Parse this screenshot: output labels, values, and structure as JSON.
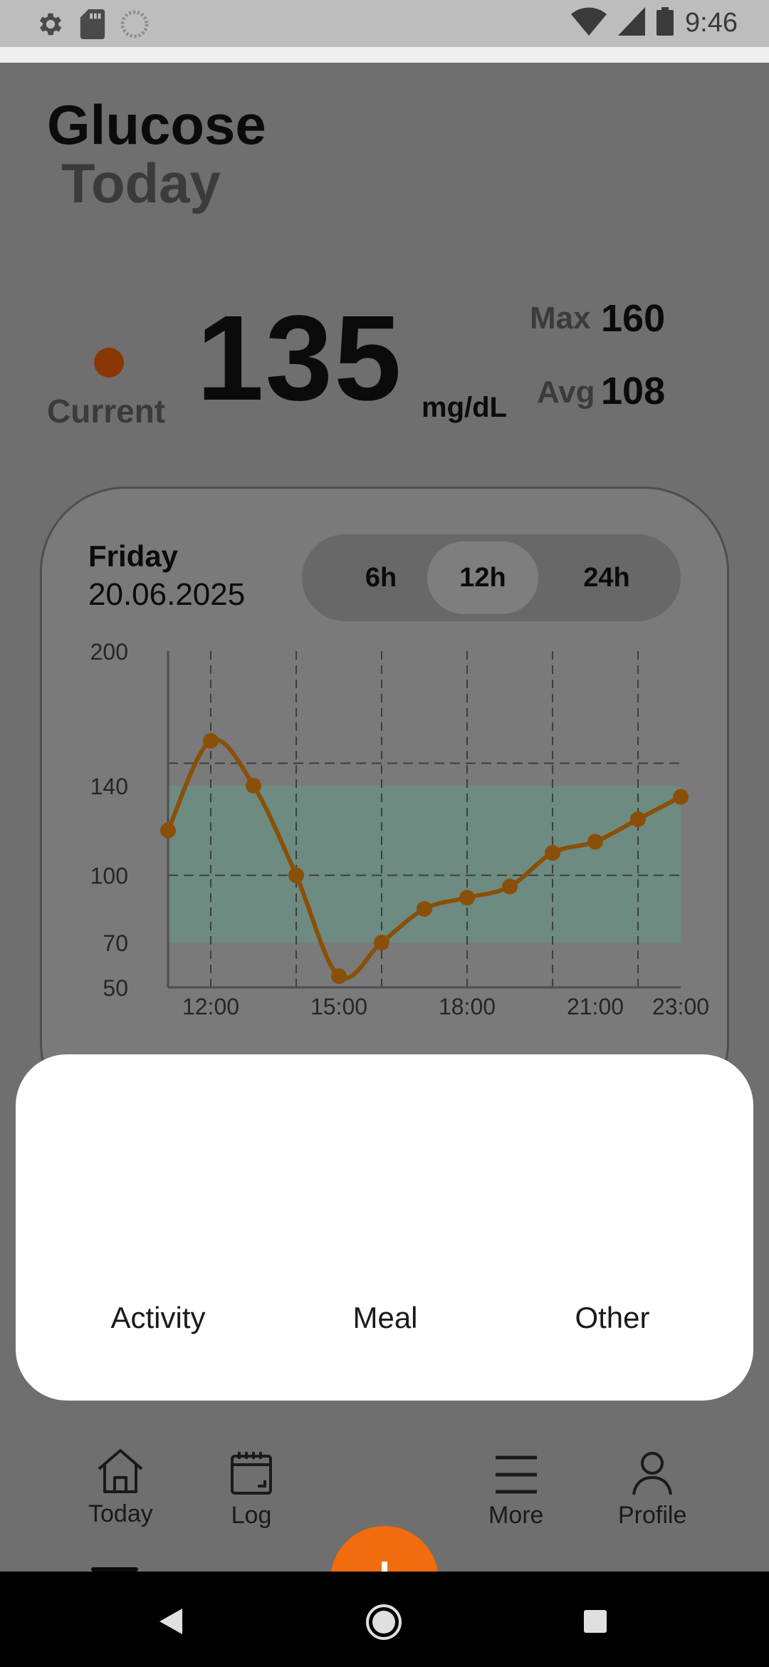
{
  "status_bar": {
    "time": "9:46",
    "left_icons": [
      "gear-icon",
      "sd-card-icon",
      "sync-icon"
    ],
    "right_icons": [
      "wifi-icon",
      "signal-icon",
      "battery-icon"
    ]
  },
  "header": {
    "title_line1": "Glucose",
    "title_line2": "Today"
  },
  "current": {
    "label": "Current",
    "value": "135",
    "unit": "mg/dL",
    "indicator_color": "#8a3706"
  },
  "stats": {
    "max_label": "Max",
    "max_value": "160",
    "avg_label": "Avg",
    "avg_value": "108"
  },
  "card": {
    "day": "Friday",
    "date": "20.06.2025",
    "ranges": [
      "6h",
      "12h",
      "24h"
    ],
    "selected_range": "12h"
  },
  "chart_data": {
    "type": "line",
    "x_tick_labels": [
      "12:00",
      "15:00",
      "18:00",
      "21:00",
      "23:00"
    ],
    "y_tick_labels": [
      "200",
      "140",
      "100",
      "70",
      "50"
    ],
    "ylim": [
      50,
      200
    ],
    "xlim": [
      "11:00",
      "23:00"
    ],
    "target_range": [
      70,
      140
    ],
    "reference_lines": [
      150,
      100
    ],
    "x": [
      "11:00",
      "12:00",
      "13:00",
      "14:00",
      "15:00",
      "16:00",
      "17:00",
      "18:00",
      "19:00",
      "20:00",
      "21:00",
      "22:00",
      "23:00"
    ],
    "values": [
      120,
      160,
      140,
      100,
      55,
      70,
      85,
      90,
      95,
      110,
      115,
      125,
      135
    ],
    "line_color": "#8a4f08",
    "band_color": "#6d8b80",
    "grid": true
  },
  "bottom_sheet": {
    "options": [
      "Activity",
      "Meal",
      "Other"
    ]
  },
  "bottom_nav": {
    "items": [
      {
        "label": "Today",
        "icon": "home-icon"
      },
      {
        "label": "Log",
        "icon": "calendar-icon"
      },
      {
        "label": "More",
        "icon": "menu-icon"
      },
      {
        "label": "Profile",
        "icon": "person-icon"
      }
    ],
    "fab_icon": "plus-icon",
    "fab_color": "#f06c0e"
  },
  "system_nav": {
    "buttons": [
      "back-icon",
      "home-circle-icon",
      "recents-icon"
    ]
  }
}
